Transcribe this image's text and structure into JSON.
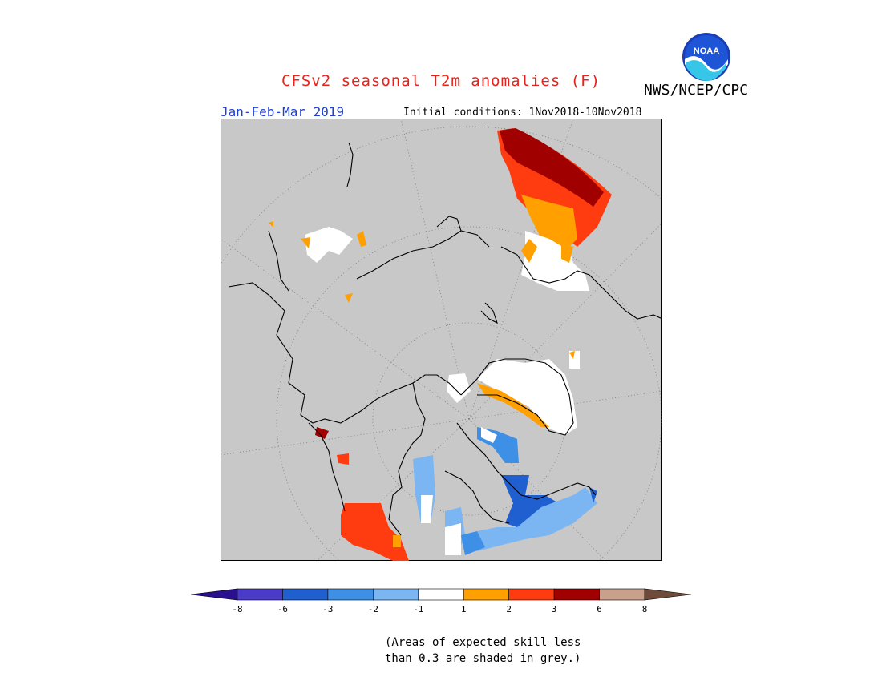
{
  "title": "CFSv2 seasonal T2m anomalies (F)",
  "organization": "NWS/NCEP/CPC",
  "logo_text": "NOAA",
  "period": "Jan-Feb-Mar 2019",
  "initial_conditions": "Initial conditions: 1Nov2018-10Nov2018",
  "colors": {
    "title": "#e8221a",
    "period": "#1f3fd1",
    "land_grey": "#c8c8c8",
    "coast": "#000000"
  },
  "colorbar": {
    "bins": [
      {
        "color": "#2a0f8f",
        "label": "-8"
      },
      {
        "color": "#4a3cc8",
        "label": "-6"
      },
      {
        "color": "#1f5fd0",
        "label": "-3"
      },
      {
        "color": "#3e8fe6",
        "label": "-2"
      },
      {
        "color": "#7bb6f2",
        "label": "-1"
      },
      {
        "color": "#ffffff",
        "label": "1"
      },
      {
        "color": "#ff9f00",
        "label": "2"
      },
      {
        "color": "#ff3b10",
        "label": "3"
      },
      {
        "color": "#a00000",
        "label": "6"
      },
      {
        "color": "#c9a08c",
        "label": "8"
      },
      {
        "color": "#6e4a3a",
        "label": ""
      }
    ]
  },
  "note_line1": "(Areas of expected skill less",
  "note_line2": "than 0.3 are shaded in grey.)"
}
